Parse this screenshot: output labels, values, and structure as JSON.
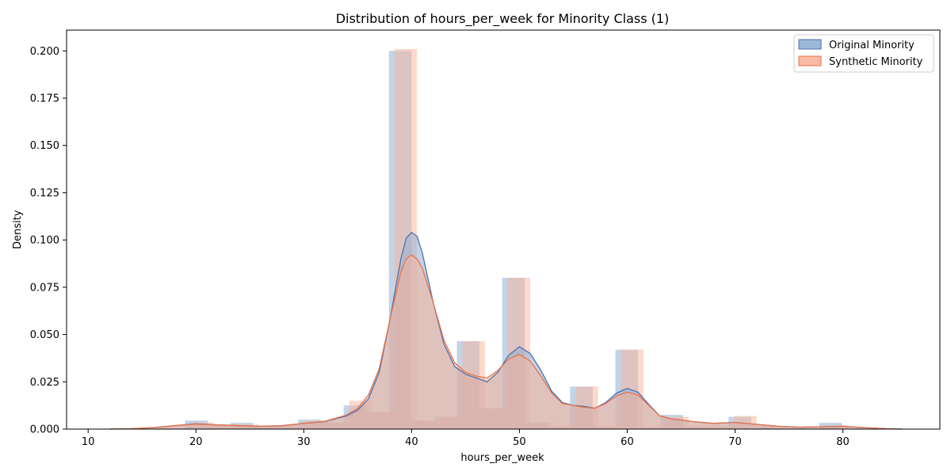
{
  "chart_data": {
    "type": "histogram",
    "title": "Distribution of hours_per_week for Minority Class (1)",
    "xlabel": "hours_per_week",
    "ylabel": "Density",
    "xlim": [
      8,
      89
    ],
    "ylim": [
      0,
      0.211
    ],
    "xticks": [
      10,
      20,
      30,
      40,
      50,
      60,
      70,
      80
    ],
    "yticks": [
      0.0,
      0.025,
      0.05,
      0.075,
      0.1,
      0.125,
      0.15,
      0.175,
      0.2
    ],
    "ytick_labels": [
      "0.000",
      "0.025",
      "0.050",
      "0.075",
      "0.100",
      "0.125",
      "0.150",
      "0.175",
      "0.200"
    ],
    "legend_position": "top-right",
    "series": [
      {
        "name": "Original Minority",
        "color": "#4c72b0",
        "fill_color": "#8fb0d4",
        "bin_width": 2.1,
        "bins": [
          [
            19,
            0.0045
          ],
          [
            21.1,
            0.0015
          ],
          [
            23.2,
            0.0033
          ],
          [
            25.3,
            0.0015
          ],
          [
            27.4,
            0.0015
          ],
          [
            29.5,
            0.005
          ],
          [
            31.6,
            0.0035
          ],
          [
            33.7,
            0.0125
          ],
          [
            35.8,
            0.009
          ],
          [
            37.9,
            0.2
          ],
          [
            40.0,
            0.0045
          ],
          [
            42.1,
            0.0065
          ],
          [
            44.2,
            0.0465
          ],
          [
            46.3,
            0.011
          ],
          [
            48.4,
            0.08
          ],
          [
            50.5,
            0.0035
          ],
          [
            52.6,
            0.0015
          ],
          [
            54.7,
            0.0225
          ],
          [
            56.8,
            0.0015
          ],
          [
            58.9,
            0.042
          ],
          [
            61.0,
            0.001
          ],
          [
            63.1,
            0.0075
          ],
          [
            65.2,
            0.0015
          ],
          [
            67.3,
            0.0015
          ],
          [
            69.4,
            0.0065
          ],
          [
            71.5,
            0.0015
          ],
          [
            77.8,
            0.0033
          ]
        ],
        "kde": [
          [
            12,
            0.0
          ],
          [
            14,
            0.0002
          ],
          [
            16,
            0.0008
          ],
          [
            18,
            0.0018
          ],
          [
            20,
            0.0028
          ],
          [
            22,
            0.0022
          ],
          [
            24,
            0.0018
          ],
          [
            26,
            0.0015
          ],
          [
            28,
            0.0018
          ],
          [
            30,
            0.003
          ],
          [
            32,
            0.004
          ],
          [
            34,
            0.007
          ],
          [
            35,
            0.01
          ],
          [
            36,
            0.016
          ],
          [
            37,
            0.03
          ],
          [
            38,
            0.058
          ],
          [
            39,
            0.09
          ],
          [
            39.5,
            0.101
          ],
          [
            40,
            0.104
          ],
          [
            40.5,
            0.102
          ],
          [
            41,
            0.093
          ],
          [
            42,
            0.067
          ],
          [
            43,
            0.045
          ],
          [
            44,
            0.033
          ],
          [
            45,
            0.029
          ],
          [
            46,
            0.027
          ],
          [
            47,
            0.025
          ],
          [
            48,
            0.03
          ],
          [
            49,
            0.039
          ],
          [
            50,
            0.0435
          ],
          [
            51,
            0.04
          ],
          [
            52,
            0.031
          ],
          [
            53,
            0.02
          ],
          [
            54,
            0.014
          ],
          [
            55,
            0.0125
          ],
          [
            56,
            0.012
          ],
          [
            57,
            0.011
          ],
          [
            58,
            0.014
          ],
          [
            59,
            0.019
          ],
          [
            60,
            0.0215
          ],
          [
            61,
            0.0195
          ],
          [
            62,
            0.013
          ],
          [
            63,
            0.007
          ],
          [
            64,
            0.0055
          ],
          [
            66,
            0.004
          ],
          [
            68,
            0.003
          ],
          [
            70,
            0.0035
          ],
          [
            72,
            0.0025
          ],
          [
            74,
            0.0015
          ],
          [
            76,
            0.001
          ],
          [
            78,
            0.0012
          ],
          [
            80,
            0.0015
          ],
          [
            82,
            0.0008
          ],
          [
            84,
            0.0002
          ],
          [
            85.5,
            0.0
          ]
        ]
      },
      {
        "name": "Synthetic Minority",
        "color": "#e8734a",
        "fill_color": "#f9b39a",
        "bin_width": 2.1,
        "bins": [
          [
            19.5,
            0.0035
          ],
          [
            21.6,
            0.0025
          ],
          [
            23.7,
            0.0025
          ],
          [
            25.8,
            0.0015
          ],
          [
            27.9,
            0.0015
          ],
          [
            30.0,
            0.0045
          ],
          [
            32.1,
            0.0035
          ],
          [
            34.2,
            0.015
          ],
          [
            36.3,
            0.009
          ],
          [
            38.4,
            0.201
          ],
          [
            40.5,
            0.0045
          ],
          [
            42.6,
            0.0065
          ],
          [
            44.7,
            0.0465
          ],
          [
            46.8,
            0.011
          ],
          [
            48.9,
            0.08
          ],
          [
            51.0,
            0.0035
          ],
          [
            53.1,
            0.0015
          ],
          [
            55.2,
            0.0225
          ],
          [
            57.3,
            0.0015
          ],
          [
            59.4,
            0.042
          ],
          [
            61.5,
            0.001
          ],
          [
            63.6,
            0.0065
          ],
          [
            65.7,
            0.0015
          ],
          [
            67.8,
            0.0015
          ],
          [
            69.9,
            0.007
          ],
          [
            72.0,
            0.0015
          ],
          [
            78.3,
            0.002
          ]
        ],
        "kde": [
          [
            12,
            0.0
          ],
          [
            14,
            0.0002
          ],
          [
            16,
            0.0008
          ],
          [
            18,
            0.0018
          ],
          [
            20,
            0.0027
          ],
          [
            22,
            0.0022
          ],
          [
            24,
            0.0018
          ],
          [
            26,
            0.0015
          ],
          [
            28,
            0.0018
          ],
          [
            30,
            0.003
          ],
          [
            32,
            0.0042
          ],
          [
            34,
            0.0075
          ],
          [
            35,
            0.011
          ],
          [
            36,
            0.018
          ],
          [
            37,
            0.032
          ],
          [
            38,
            0.058
          ],
          [
            39,
            0.083
          ],
          [
            39.5,
            0.09
          ],
          [
            40,
            0.092
          ],
          [
            40.5,
            0.09
          ],
          [
            41,
            0.085
          ],
          [
            42,
            0.067
          ],
          [
            43,
            0.047
          ],
          [
            44,
            0.035
          ],
          [
            45,
            0.03
          ],
          [
            46,
            0.028
          ],
          [
            47,
            0.027
          ],
          [
            48,
            0.031
          ],
          [
            49,
            0.037
          ],
          [
            50,
            0.0395
          ],
          [
            51,
            0.036
          ],
          [
            52,
            0.028
          ],
          [
            53,
            0.019
          ],
          [
            54,
            0.0135
          ],
          [
            55,
            0.0125
          ],
          [
            56,
            0.0115
          ],
          [
            57,
            0.011
          ],
          [
            58,
            0.0135
          ],
          [
            59,
            0.0175
          ],
          [
            60,
            0.0195
          ],
          [
            61,
            0.018
          ],
          [
            62,
            0.0125
          ],
          [
            63,
            0.007
          ],
          [
            64,
            0.0055
          ],
          [
            66,
            0.004
          ],
          [
            68,
            0.003
          ],
          [
            70,
            0.0035
          ],
          [
            72,
            0.0025
          ],
          [
            74,
            0.0015
          ],
          [
            76,
            0.001
          ],
          [
            78,
            0.0012
          ],
          [
            80,
            0.0015
          ],
          [
            82,
            0.0008
          ],
          [
            84,
            0.0002
          ],
          [
            85.5,
            0.0
          ]
        ]
      }
    ]
  }
}
